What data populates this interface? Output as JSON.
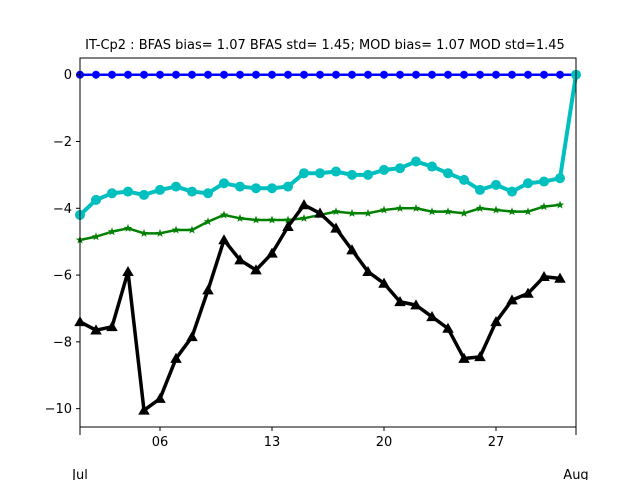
{
  "chart_data": {
    "type": "line",
    "title": "IT-Cp2   : BFAS bias= 1.07 BFAS std= 1.45; MOD bias= 1.07 MOD std=1.45",
    "xlabel": "",
    "ylabel": "",
    "x": [
      1,
      2,
      3,
      4,
      5,
      6,
      7,
      8,
      9,
      10,
      11,
      12,
      13,
      14,
      15,
      16,
      17,
      18,
      19,
      20,
      21,
      22,
      23,
      24,
      25,
      26,
      27,
      28,
      29,
      30,
      31,
      32
    ],
    "xlim": [
      1,
      32
    ],
    "ylim": [
      -10.55,
      0.5
    ],
    "x_ticks": [
      {
        "x": 6,
        "label": "06"
      },
      {
        "x": 13,
        "label": "13"
      },
      {
        "x": 20,
        "label": "20"
      },
      {
        "x": 27,
        "label": "27"
      }
    ],
    "x_edge_labels": [
      {
        "x": 1,
        "label": "Jul"
      },
      {
        "x": 32,
        "label": "Aug"
      }
    ],
    "y_ticks": [
      0,
      -2,
      -4,
      -6,
      -8,
      -10
    ],
    "y_tick_labels": [
      "0",
      "−2",
      "−4",
      "−6",
      "−8",
      "−10"
    ],
    "grid": false,
    "legend": "none",
    "series": [
      {
        "color": "#0000ff",
        "marker": "circle",
        "width": 2.5,
        "markersize": 4,
        "values": [
          0,
          0,
          0,
          0,
          0,
          0,
          0,
          0,
          0,
          0,
          0,
          0,
          0,
          0,
          0,
          0,
          0,
          0,
          0,
          0,
          0,
          0,
          0,
          0,
          0,
          0,
          0,
          0,
          0,
          0,
          0,
          0
        ]
      },
      {
        "color": "#00bfbf",
        "marker": "circle",
        "width": 4,
        "markersize": 5,
        "values": [
          -4.2,
          -3.75,
          -3.55,
          -3.5,
          -3.6,
          -3.45,
          -3.35,
          -3.5,
          -3.55,
          -3.25,
          -3.35,
          -3.4,
          -3.4,
          -3.35,
          -2.95,
          -2.95,
          -2.9,
          -3.0,
          -3.0,
          -2.85,
          -2.8,
          -2.6,
          -2.75,
          -2.95,
          -3.15,
          -3.45,
          -3.3,
          -3.5,
          -3.25,
          -3.2,
          -3.1,
          0.0
        ]
      },
      {
        "color": "#008000",
        "marker": "star",
        "width": 2.5,
        "markersize": 4,
        "values": [
          -4.95,
          -4.85,
          -4.7,
          -4.6,
          -4.75,
          -4.75,
          -4.65,
          -4.65,
          -4.4,
          -4.2,
          -4.3,
          -4.35,
          -4.35,
          -4.35,
          -4.3,
          -4.2,
          -4.1,
          -4.15,
          -4.15,
          -4.05,
          -4.0,
          -4.0,
          -4.1,
          -4.1,
          -4.15,
          -4.0,
          -4.05,
          -4.1,
          -4.1,
          -3.95,
          -3.9,
          null
        ]
      },
      {
        "color": "#000000",
        "marker": "triangle",
        "width": 3.5,
        "markersize": 5,
        "values": [
          -7.4,
          -7.65,
          -7.55,
          -5.9,
          -10.05,
          -9.7,
          -8.5,
          -7.85,
          -6.45,
          -4.95,
          -5.55,
          -5.85,
          -5.35,
          -4.55,
          -3.9,
          -4.15,
          -4.6,
          -5.25,
          -5.9,
          -6.25,
          -6.8,
          -6.9,
          -7.25,
          -7.6,
          -8.5,
          -8.45,
          -7.4,
          -6.75,
          -6.55,
          -6.05,
          -6.1,
          null
        ]
      }
    ]
  }
}
